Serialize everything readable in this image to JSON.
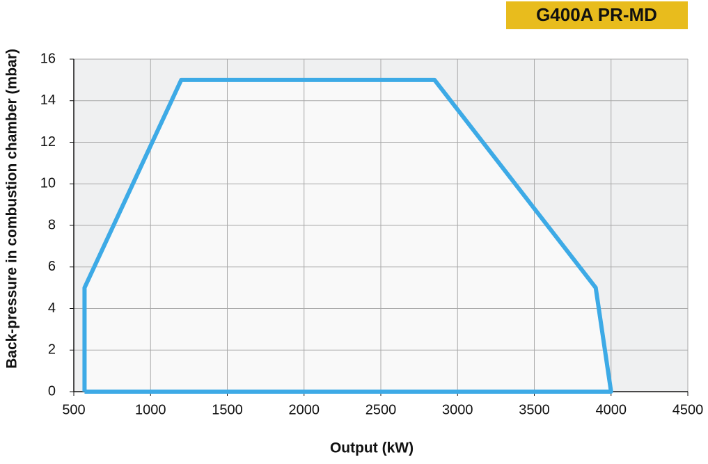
{
  "chart_data": {
    "type": "line",
    "badge": "G400A PR-MD",
    "x_label": "Output (kW)",
    "y_label": "Back-pressure in combustion chamber (mbar)",
    "x": [
      570,
      570,
      1200,
      2850,
      3900,
      4000,
      570
    ],
    "series": [
      {
        "color": "#3daae6",
        "values": [
          0,
          5,
          15,
          15,
          5,
          0,
          0
        ]
      }
    ],
    "xlim": [
      500,
      4500
    ],
    "xticks": [
      500,
      1000,
      1500,
      2000,
      2500,
      3000,
      3500,
      4000,
      4500
    ],
    "ylim": [
      0,
      16
    ],
    "yticks": [
      0,
      2,
      4,
      6,
      8,
      10,
      12,
      14,
      16
    ],
    "grid": true
  }
}
